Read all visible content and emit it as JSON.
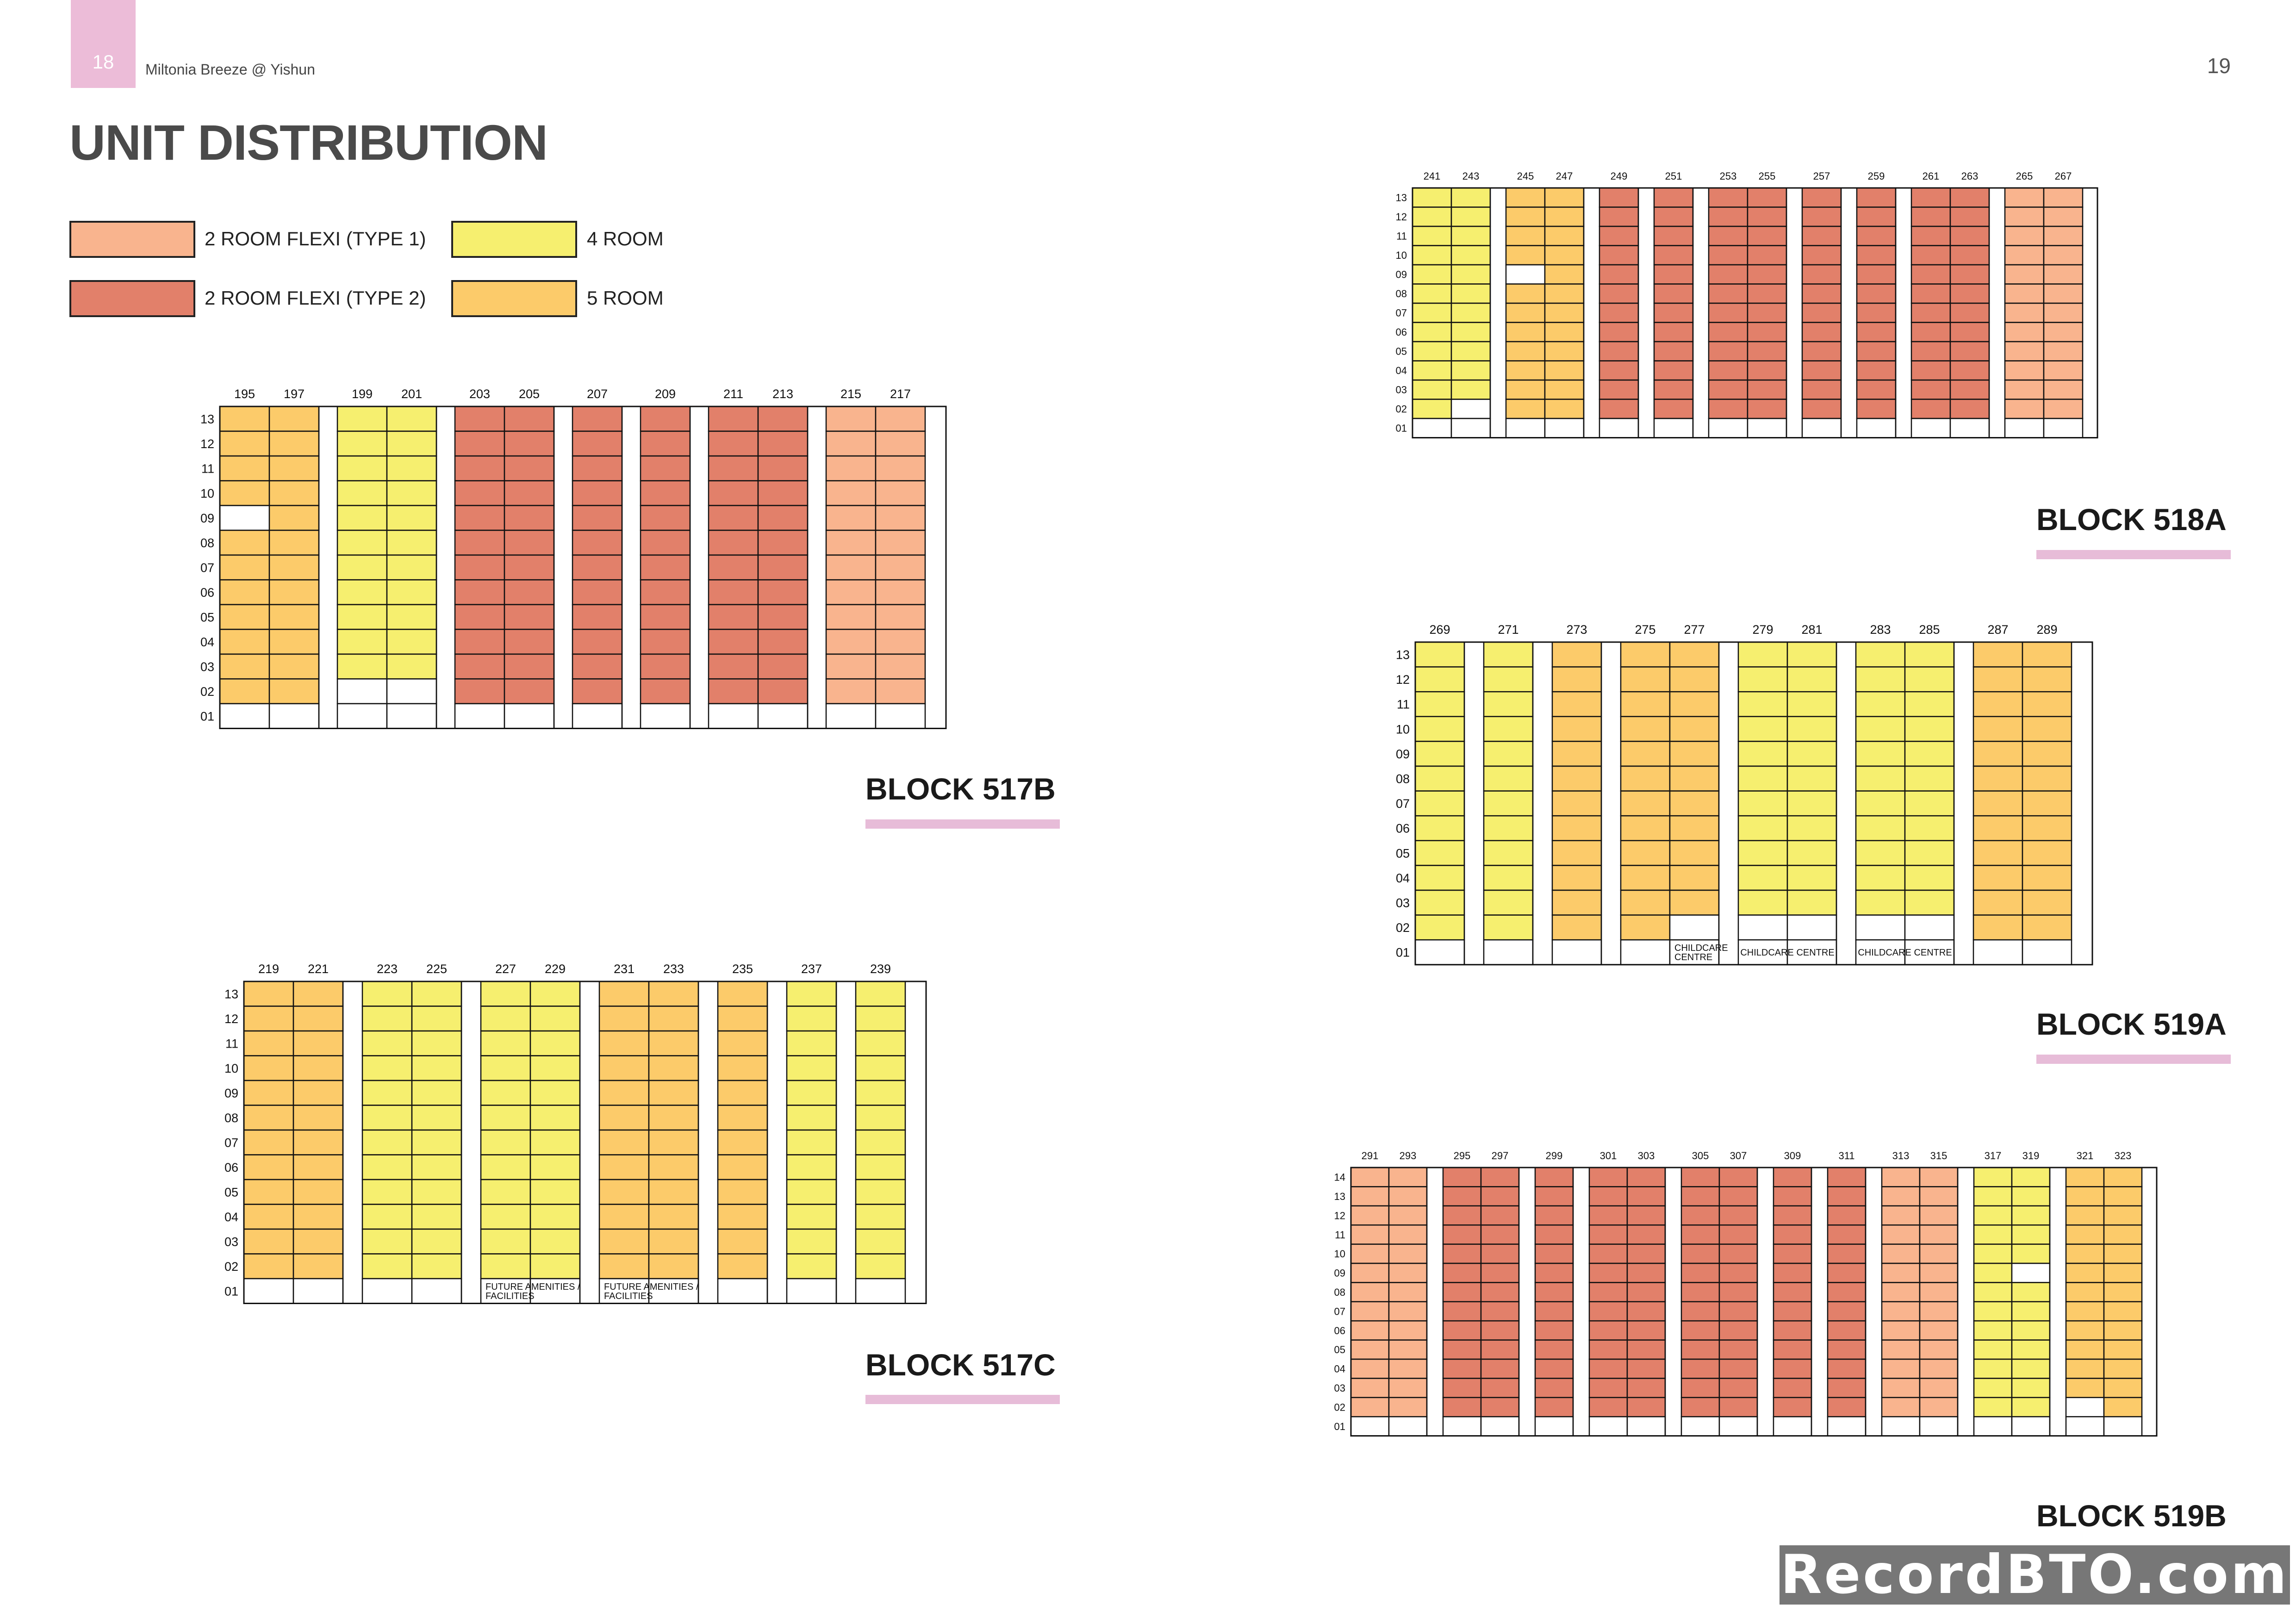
{
  "header": {
    "left_page_number": "18",
    "document_title": "Miltonia Breeze @ Yishun",
    "right_page_number": "19",
    "page_heading": "UNIT DISTRIBUTION"
  },
  "legend": [
    {
      "code": "F1",
      "label": "2 ROOM FLEXI (TYPE 1)",
      "color": "#f9b48e"
    },
    {
      "code": "R4",
      "label": "4 ROOM",
      "color": "#f6ef6f"
    },
    {
      "code": "F2",
      "label": "2 ROOM FLEXI (TYPE 2)",
      "color": "#e2806a"
    },
    {
      "code": "R5",
      "label": "5 ROOM",
      "color": "#fccb6a"
    }
  ],
  "blocks": [
    {
      "id": "517b",
      "name": "BLOCK 517B",
      "top_floor": 13,
      "groups": [
        {
          "units": [
            {
              "no": "195",
              "type": "R5",
              "empty": [
                9
              ]
            },
            {
              "no": "197",
              "type": "R5"
            }
          ]
        },
        {
          "units": [
            {
              "no": "199",
              "type": "R4",
              "empty": [
                2
              ]
            },
            {
              "no": "201",
              "type": "R4",
              "empty": [
                2
              ]
            }
          ]
        },
        {
          "units": [
            {
              "no": "203",
              "type": "F2"
            },
            {
              "no": "205",
              "type": "F2"
            }
          ]
        },
        {
          "units": [
            {
              "no": "207",
              "type": "F2"
            }
          ]
        },
        {
          "units": [
            {
              "no": "209",
              "type": "F2"
            }
          ]
        },
        {
          "units": [
            {
              "no": "211",
              "type": "F2"
            },
            {
              "no": "213",
              "type": "F2"
            }
          ]
        },
        {
          "units": [
            {
              "no": "215",
              "type": "F1"
            },
            {
              "no": "217",
              "type": "F1"
            }
          ]
        }
      ],
      "notes": []
    },
    {
      "id": "517c",
      "name": "BLOCK 517C",
      "top_floor": 13,
      "groups": [
        {
          "units": [
            {
              "no": "219",
              "type": "R5"
            },
            {
              "no": "221",
              "type": "R5"
            }
          ]
        },
        {
          "units": [
            {
              "no": "223",
              "type": "R4"
            },
            {
              "no": "225",
              "type": "R4"
            }
          ]
        },
        {
          "units": [
            {
              "no": "227",
              "type": "R4"
            },
            {
              "no": "229",
              "type": "R4"
            }
          ]
        },
        {
          "units": [
            {
              "no": "231",
              "type": "R5"
            },
            {
              "no": "233",
              "type": "R5"
            }
          ]
        },
        {
          "units": [
            {
              "no": "235",
              "type": "R5"
            }
          ]
        },
        {
          "units": [
            {
              "no": "237",
              "type": "R4"
            }
          ]
        },
        {
          "units": [
            {
              "no": "239",
              "type": "R4"
            }
          ]
        }
      ],
      "notes": [
        {
          "group": 2,
          "lines": [
            "FUTURE AMENITIES /",
            "FACILITIES"
          ]
        },
        {
          "group": 3,
          "lines": [
            "FUTURE AMENITIES /",
            "FACILITIES"
          ]
        }
      ]
    },
    {
      "id": "518a",
      "name": "BLOCK 518A",
      "top_floor": 13,
      "groups": [
        {
          "units": [
            {
              "no": "241",
              "type": "R4"
            },
            {
              "no": "243",
              "type": "R4",
              "empty": [
                2
              ]
            }
          ]
        },
        {
          "units": [
            {
              "no": "245",
              "type": "R5",
              "empty": [
                9
              ]
            },
            {
              "no": "247",
              "type": "R5"
            }
          ]
        },
        {
          "units": [
            {
              "no": "249",
              "type": "F2"
            }
          ]
        },
        {
          "units": [
            {
              "no": "251",
              "type": "F2"
            }
          ]
        },
        {
          "units": [
            {
              "no": "253",
              "type": "F2"
            },
            {
              "no": "255",
              "type": "F2"
            }
          ]
        },
        {
          "units": [
            {
              "no": "257",
              "type": "F2"
            }
          ]
        },
        {
          "units": [
            {
              "no": "259",
              "type": "F2"
            }
          ]
        },
        {
          "units": [
            {
              "no": "261",
              "type": "F2"
            },
            {
              "no": "263",
              "type": "F2"
            }
          ]
        },
        {
          "units": [
            {
              "no": "265",
              "type": "F1"
            },
            {
              "no": "267",
              "type": "F1"
            }
          ]
        }
      ],
      "notes": []
    },
    {
      "id": "519a",
      "name": "BLOCK 519A",
      "top_floor": 13,
      "groups": [
        {
          "units": [
            {
              "no": "269",
              "type": "R4"
            }
          ]
        },
        {
          "units": [
            {
              "no": "271",
              "type": "R4"
            }
          ]
        },
        {
          "units": [
            {
              "no": "273",
              "type": "R5"
            }
          ]
        },
        {
          "units": [
            {
              "no": "275",
              "type": "R5"
            },
            {
              "no": "277",
              "type": "R5",
              "empty": [
                2
              ]
            }
          ]
        },
        {
          "units": [
            {
              "no": "279",
              "type": "R4",
              "empty": [
                2
              ]
            },
            {
              "no": "281",
              "type": "R4",
              "empty": [
                2
              ]
            }
          ]
        },
        {
          "units": [
            {
              "no": "283",
              "type": "R4",
              "empty": [
                2
              ]
            },
            {
              "no": "285",
              "type": "R4",
              "empty": [
                2
              ]
            }
          ]
        },
        {
          "units": [
            {
              "no": "287",
              "type": "R5"
            },
            {
              "no": "289",
              "type": "R5"
            }
          ]
        }
      ],
      "notes": [
        {
          "cell": [
            3,
            1
          ],
          "lines": [
            "CHILDCARE",
            "CENTRE"
          ]
        },
        {
          "group": 4,
          "lines": [
            "CHILDCARE  CENTRE"
          ]
        },
        {
          "group": 5,
          "lines": [
            "CHILDCARE  CENTRE"
          ]
        }
      ]
    },
    {
      "id": "519b",
      "name": "BLOCK 519B",
      "top_floor": 14,
      "groups": [
        {
          "units": [
            {
              "no": "291",
              "type": "F1"
            },
            {
              "no": "293",
              "type": "F1"
            }
          ]
        },
        {
          "units": [
            {
              "no": "295",
              "type": "F2"
            },
            {
              "no": "297",
              "type": "F2"
            }
          ]
        },
        {
          "units": [
            {
              "no": "299",
              "type": "F2"
            }
          ]
        },
        {
          "units": [
            {
              "no": "301",
              "type": "F2"
            },
            {
              "no": "303",
              "type": "F2"
            }
          ]
        },
        {
          "units": [
            {
              "no": "305",
              "type": "F2"
            },
            {
              "no": "307",
              "type": "F2"
            }
          ]
        },
        {
          "units": [
            {
              "no": "309",
              "type": "F2"
            }
          ]
        },
        {
          "units": [
            {
              "no": "311",
              "type": "F2"
            }
          ]
        },
        {
          "units": [
            {
              "no": "313",
              "type": "F1"
            },
            {
              "no": "315",
              "type": "F1"
            }
          ]
        },
        {
          "units": [
            {
              "no": "317",
              "type": "R4"
            },
            {
              "no": "319",
              "type": "R4",
              "empty": [
                9
              ]
            }
          ]
        },
        {
          "units": [
            {
              "no": "321",
              "type": "R5",
              "empty": [
                2
              ]
            },
            {
              "no": "323",
              "type": "R5"
            }
          ]
        }
      ],
      "notes": []
    }
  ],
  "watermark": "RecordBTO.com"
}
